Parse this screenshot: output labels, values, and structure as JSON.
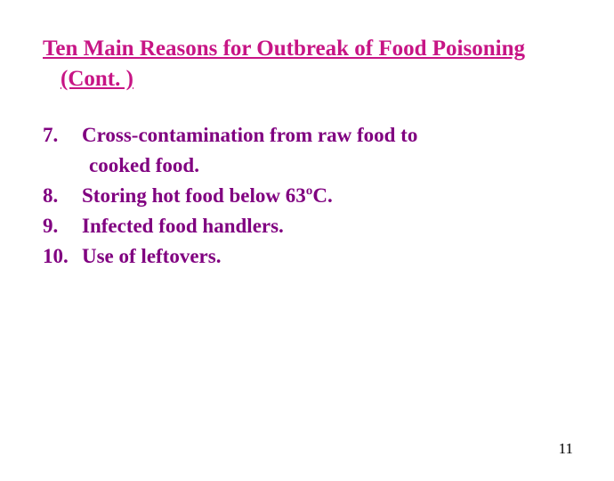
{
  "title": {
    "line1": "Ten Main Reasons for Outbreak of Food Poisoning",
    "line2": "(Cont. )",
    "color": "#c71585",
    "fontsize": 25
  },
  "items": [
    {
      "num": "7.",
      "text": "Cross-contamination from raw food to",
      "cont": "cooked food."
    },
    {
      "num": "8.",
      "text": "Storing hot food below 63ºC."
    },
    {
      "num": "9.",
      "text": "Infected food handlers."
    },
    {
      "num": "10.",
      "text": "Use of leftovers."
    }
  ],
  "list_style": {
    "color": "#800080",
    "fontsize": 23
  },
  "page_number": "11",
  "background_color": "#ffffff"
}
